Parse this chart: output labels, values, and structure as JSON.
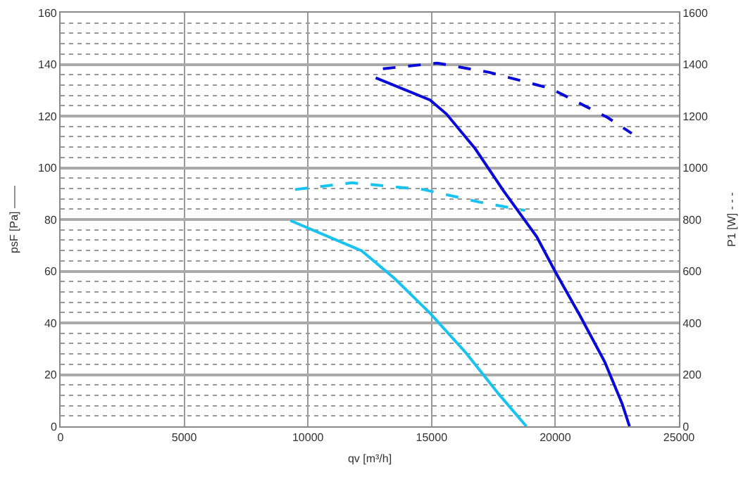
{
  "chart_data": {
    "type": "line",
    "xlabel": "qv [m³/h]",
    "ylabel": "psF [Pa] ——",
    "y2label": "P1 [W] - - -",
    "xlim": [
      0,
      25000
    ],
    "xticks": [
      0,
      5000,
      10000,
      15000,
      20000,
      25000
    ],
    "ylim": [
      0,
      160
    ],
    "yticks": [
      0,
      20,
      40,
      60,
      80,
      100,
      120,
      140,
      160
    ],
    "y2lim": [
      0,
      1600
    ],
    "y2ticks": [
      0,
      200,
      400,
      600,
      800,
      1000,
      1200,
      1400,
      1600
    ],
    "grid": true,
    "marker": "none",
    "series": [
      {
        "color": "#0a0ad8",
        "line_style": "solid",
        "x": [
          12740,
          14940,
          15600,
          16760,
          17900,
          19250,
          20000,
          21000,
          22000,
          22700,
          23000
        ],
        "values": [
          134.8,
          126.2,
          120.8,
          107.4,
          91.2,
          73.3,
          59.8,
          42.8,
          24.9,
          8.8,
          0
        ]
      },
      {
        "color": "#0a0ad8",
        "line_style": "dashed",
        "axis": "y2",
        "x": [
          13030,
          15230,
          17340,
          19830,
          22100,
          23090
        ],
        "values": [
          1383,
          1405,
          1369,
          1306,
          1195,
          1133
        ]
      },
      {
        "color": "#19c3f0",
        "line_style": "solid",
        "x": [
          9290,
          12170,
          13500,
          14940,
          16380,
          17720,
          18830
        ],
        "values": [
          79.6,
          67.9,
          57.2,
          43.7,
          28.5,
          12.4,
          0
        ]
      },
      {
        "color": "#19c3f0",
        "line_style": "dashed",
        "axis": "y2",
        "x": [
          9480,
          11780,
          14660,
          16950,
          18780
        ],
        "values": [
          916,
          942,
          916,
          867,
          835
        ]
      }
    ]
  }
}
